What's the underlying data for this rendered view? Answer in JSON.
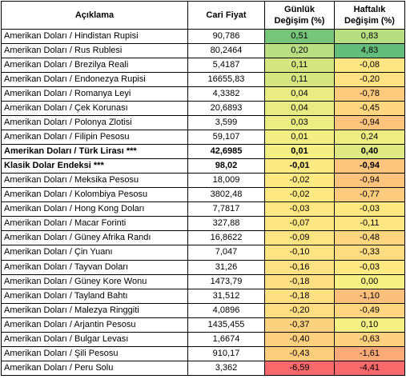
{
  "header": {
    "description": "Açıklama",
    "price": "Cari Fiyat",
    "daily_line1": "Günlük",
    "daily_line2": "Değişim (%)",
    "weekly_line1": "Haftalık",
    "weekly_line2": "Değişim (%)"
  },
  "rows": [
    {
      "name": "Amerikan Doları / Hindistan Rupisi",
      "price": "90,786",
      "daily": "0,51",
      "weekly": "0,83",
      "daily_color": "#77c47b",
      "weekly_color": "#b7df82",
      "bold": false
    },
    {
      "name": "Amerikan Doları / Rus Rublesi",
      "price": "80,2464",
      "daily": "0,20",
      "weekly": "4,83",
      "daily_color": "#b9df82",
      "weekly_color": "#63be7b",
      "bold": false
    },
    {
      "name": "Amerikan Doları / Brezilya Reali",
      "price": "5,4187",
      "daily": "0,11",
      "weekly": "-0,08",
      "daily_color": "#d5e681",
      "weekly_color": "#fee783",
      "bold": false
    },
    {
      "name": "Amerikan Doları / Endonezya Rupisi",
      "price": "16655,83",
      "daily": "0,11",
      "weekly": "-0,20",
      "daily_color": "#d5e681",
      "weekly_color": "#fee182",
      "bold": false
    },
    {
      "name": "Amerikan Doları / Romanya Leyi",
      "price": "4,3382",
      "daily": "0,04",
      "weekly": "-0,78",
      "daily_color": "#e9ec83",
      "weekly_color": "#fdca7e",
      "bold": false
    },
    {
      "name": "Amerikan Doları / Çek Korunası",
      "price": "20,6893",
      "daily": "0,04",
      "weekly": "-0,45",
      "daily_color": "#e9ec83",
      "weekly_color": "#fed780",
      "bold": false
    },
    {
      "name": "Amerikan Doları / Polonya Zlotisi",
      "price": "3,599",
      "daily": "0,03",
      "weekly": "-0,94",
      "daily_color": "#eced83",
      "weekly_color": "#fdc47d",
      "bold": false
    },
    {
      "name": "Amerikan Doları / Filipin Pesosu",
      "price": "59,107",
      "daily": "0,01",
      "weekly": "0,24",
      "daily_color": "#f3ef84",
      "weekly_color": "#eeed84",
      "bold": false
    },
    {
      "name": "Amerikan Doları / Türk Lirası ***",
      "price": "42,6985",
      "daily": "0,01",
      "weekly": "0,40",
      "daily_color": "#f3ef84",
      "weekly_color": "#dfe983",
      "bold": true
    },
    {
      "name": "Klasik Dolar Endeksi ***",
      "price": "98,02",
      "daily": "-0,01",
      "weekly": "-0,94",
      "daily_color": "#feea83",
      "weekly_color": "#fdc47d",
      "bold": true
    },
    {
      "name": "Amerikan Doları / Meksika Pesosu",
      "price": "18,009",
      "daily": "-0,02",
      "weekly": "-0,94",
      "daily_color": "#fee983",
      "weekly_color": "#fdc47d",
      "bold": false
    },
    {
      "name": "Amerikan Doları / Kolombiya Pesosu",
      "price": "3802,48",
      "daily": "-0,02",
      "weekly": "-0,77",
      "daily_color": "#fee983",
      "weekly_color": "#fdcb7e",
      "bold": false
    },
    {
      "name": "Amerikan Doları / Hong Kong Doları",
      "price": "7,7817",
      "daily": "-0,03",
      "weekly": "-0,03",
      "daily_color": "#fee883",
      "weekly_color": "#fee983",
      "bold": false
    },
    {
      "name": "Amerikan Doları / Macar Forinti",
      "price": "327,88",
      "daily": "-0,07",
      "weekly": "-0,11",
      "daily_color": "#fee683",
      "weekly_color": "#fee683",
      "bold": false
    },
    {
      "name": "Amerikan Doları / Güney Afrika Randı",
      "price": "16,8622",
      "daily": "-0,09",
      "weekly": "-0,48",
      "daily_color": "#fee583",
      "weekly_color": "#fed680",
      "bold": false
    },
    {
      "name": "Amerikan Doları / Çin Yuanı",
      "price": "7,047",
      "daily": "-0,10",
      "weekly": "-0,33",
      "daily_color": "#fee482",
      "weekly_color": "#fedc81",
      "bold": false
    },
    {
      "name": "Amerikan Doları / Tayvan Doları",
      "price": "31,26",
      "daily": "-0,16",
      "weekly": "-0,03",
      "daily_color": "#fee182",
      "weekly_color": "#fee983",
      "bold": false
    },
    {
      "name": "Amerikan Doları / Güney Kore Wonu",
      "price": "1473,79",
      "daily": "-0,18",
      "weekly": "0,00",
      "daily_color": "#fee082",
      "weekly_color": "#f7f084",
      "bold": false
    },
    {
      "name": "Amerikan Doları / Tayland Bahtı",
      "price": "31,512",
      "daily": "-0,18",
      "weekly": "-1,10",
      "daily_color": "#fee082",
      "weekly_color": "#fdbf7c",
      "bold": false
    },
    {
      "name": "Amerikan Doları / Malezya Ringgiti",
      "price": "4,0896",
      "daily": "-0,20",
      "weekly": "-0,49",
      "daily_color": "#fede82",
      "weekly_color": "#fdd67f",
      "bold": false
    },
    {
      "name": "Amerikan Doları / Arjantin Pesosu",
      "price": "1435,455",
      "daily": "-0,37",
      "weekly": "0,10",
      "daily_color": "#fdd27f",
      "weekly_color": "#f5f084",
      "bold": false
    },
    {
      "name": "Amerikan Doları / Bulgar Levası",
      "price": "1,6674",
      "daily": "-0,40",
      "weekly": "-0,63",
      "daily_color": "#fdd07f",
      "weekly_color": "#fdd07f",
      "bold": false
    },
    {
      "name": "Amerikan Doları / Şili Pesosu",
      "price": "910,17",
      "daily": "-0,43",
      "weekly": "-1,61",
      "daily_color": "#fdcd7e",
      "weekly_color": "#fcab78",
      "bold": false
    },
    {
      "name": "Amerikan Doları / Peru Solu",
      "price": "3,362",
      "daily": "-6,59",
      "weekly": "-4,41",
      "daily_color": "#f8696b",
      "weekly_color": "#f8696b",
      "bold": false
    }
  ]
}
